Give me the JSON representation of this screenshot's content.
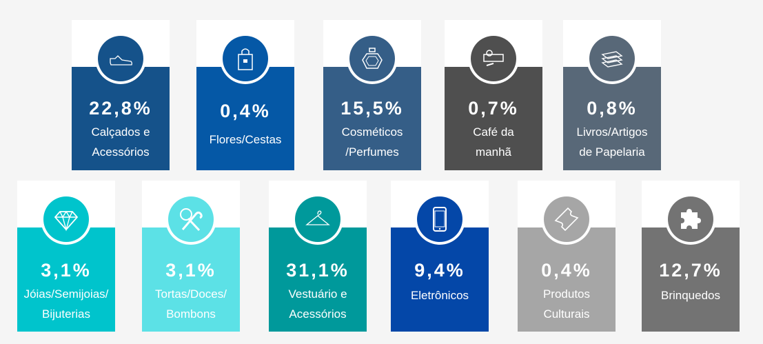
{
  "categories": [
    {
      "percent": "22,8%",
      "label_lines": [
        "Calçados e",
        "Acessórios"
      ],
      "icon": "sneaker-icon",
      "color": "#15528a"
    },
    {
      "percent": "0,4%",
      "label_lines": [
        "Flores/Cestas"
      ],
      "icon": "gift-bag-icon",
      "color": "#0558a6"
    },
    {
      "percent": "15,5%",
      "label_lines": [
        "Cosméticos",
        "/Perfumes"
      ],
      "icon": "perfume-icon",
      "color": "#355e87"
    },
    {
      "percent": "0,7%",
      "label_lines": [
        "Café da",
        "manhã"
      ],
      "icon": "breakfast-icon",
      "color": "#4f4f4f"
    },
    {
      "percent": "0,8%",
      "label_lines": [
        "Livros/Artigos",
        "de Papelaria"
      ],
      "icon": "books-icon",
      "color": "#586878"
    },
    {
      "percent": "3,1%",
      "label_lines": [
        "Jóias/Semijoias/",
        "Bijuterias"
      ],
      "icon": "diamond-icon",
      "color": "#00c4cc"
    },
    {
      "percent": "3,1%",
      "label_lines": [
        "Tortas/Doces/",
        "Bombons"
      ],
      "icon": "candy-icon",
      "color": "#5ce1e6"
    },
    {
      "percent": "31,1%",
      "label_lines": [
        "Vestuário e",
        "Acessórios"
      ],
      "icon": "hanger-icon",
      "color": "#00999b"
    },
    {
      "percent": "9,4%",
      "label_lines": [
        "Eletrônicos"
      ],
      "icon": "smartphone-icon",
      "color": "#0447a8"
    },
    {
      "percent": "0,4%",
      "label_lines": [
        "Produtos",
        "Culturais"
      ],
      "icon": "ticket-icon",
      "color": "#a6a6a6"
    },
    {
      "percent": "12,7%",
      "label_lines": [
        "Brinquedos"
      ],
      "icon": "puzzle-icon",
      "color": "#737373"
    }
  ]
}
